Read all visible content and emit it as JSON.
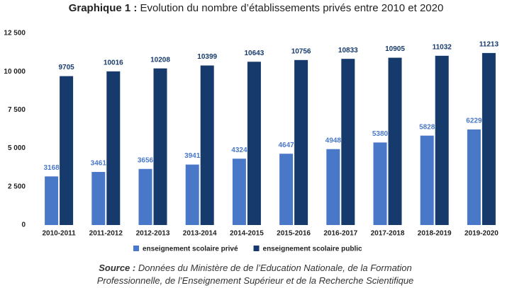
{
  "chart_data": {
    "type": "grouped-bar",
    "title_prefix": "Graphique 1 :",
    "title": "Evolution du nombre d’établissements privés entre 2010 et 2020",
    "categories": [
      "2010-2011",
      "2011-2012",
      "2012-2013",
      "2013-2014",
      "2014-2015",
      "2015-2016",
      "2016-2017",
      "2017-2018",
      "2018-2019",
      "2019-2020"
    ],
    "series": [
      {
        "name": "enseignement scolaire privé",
        "color": "#4a78c9",
        "values": [
          3168,
          3461,
          3656,
          3941,
          4324,
          4647,
          4948,
          5380,
          5828,
          6229
        ]
      },
      {
        "name": "enseignement scolaire public",
        "color": "#163a6b",
        "values": [
          9705,
          10016,
          10208,
          10399,
          10643,
          10756,
          10833,
          10905,
          11032,
          11213
        ]
      }
    ],
    "ylim": [
      0,
      12500
    ],
    "yticks": [
      0,
      {
        "value": 2500,
        "label": "2 500"
      },
      {
        "value": 5000,
        "label": "5 000"
      },
      {
        "value": 7500,
        "label": "7 500"
      },
      {
        "value": 10000,
        "label": "10 000"
      },
      {
        "value": 12500,
        "label": "12 500"
      }
    ],
    "grid": false,
    "legend": "bottom",
    "source_label": "Source :",
    "source": "Données du Ministère de de l’Education Nationale, de la Formation Professionnelle, de l’Enseignement Supérieur et de la Recherche Scientifique"
  }
}
